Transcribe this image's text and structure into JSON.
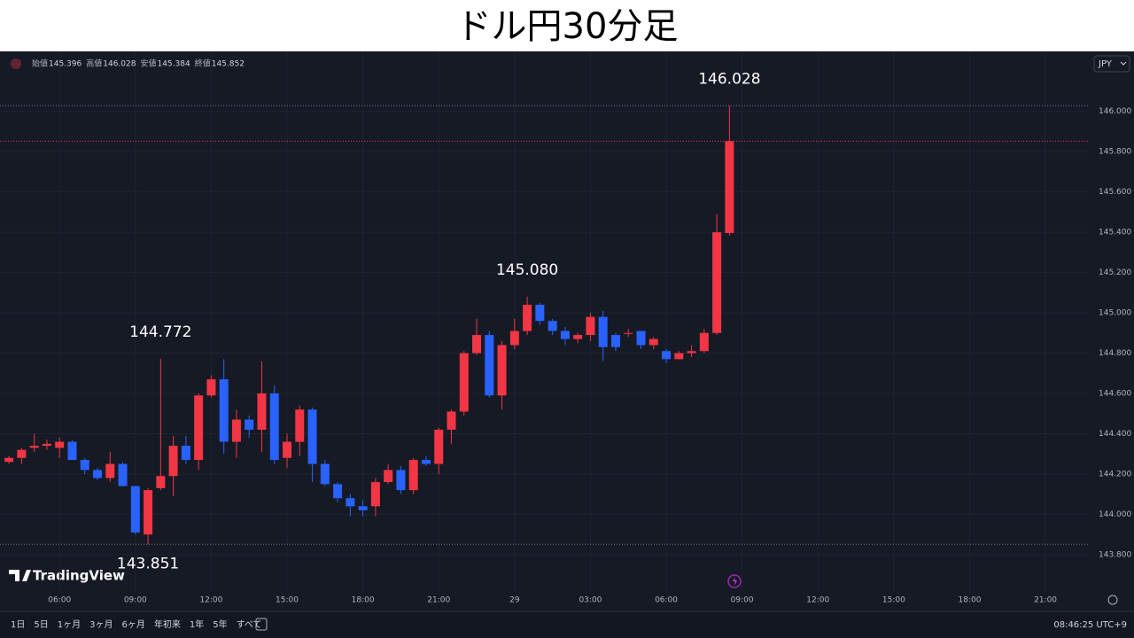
{
  "chart_data": {
    "type": "candlestick",
    "title": "ドル円30分足",
    "ohlc_labels": [
      "始値",
      "高値",
      "安値",
      "終値"
    ],
    "currency": "JPY",
    "brand": "TradingView",
    "up_color": "#f23645",
    "down_color": "#2962ff",
    "grid": true,
    "categories": [
      null,
      null,
      null,
      null,
      "06:00",
      null,
      null,
      null,
      null,
      null,
      "09:00",
      null,
      null,
      null,
      null,
      null,
      "12:00",
      null,
      null,
      null,
      null,
      null,
      "15:00",
      null,
      null,
      null,
      null,
      null,
      "18:00",
      null,
      null,
      null,
      null,
      null,
      "21:00",
      null,
      null,
      null,
      null,
      null,
      "29",
      null,
      null,
      null,
      null,
      null,
      "03:00",
      null,
      null,
      null,
      null,
      null,
      "06:00",
      null,
      null,
      null,
      null,
      null,
      "09:00",
      null,
      null,
      null,
      null,
      null,
      "12:00",
      null,
      null,
      null,
      null,
      null,
      "15:00",
      null,
      null,
      null,
      null,
      null,
      "18:00",
      null,
      null,
      null,
      null,
      null,
      "21:00",
      null,
      null,
      null
    ],
    "open": [
      144.26,
      144.28,
      144.33,
      144.34,
      144.33,
      144.36,
      144.27,
      144.22,
      144.18,
      144.25,
      144.14,
      143.9,
      144.13,
      144.19,
      144.34,
      144.27,
      144.59,
      144.67,
      144.36,
      144.47,
      144.42,
      144.6,
      144.28,
      144.36,
      144.52,
      144.25,
      144.15,
      144.08,
      144.04,
      144.04,
      144.16,
      144.22,
      144.12,
      144.27,
      144.25,
      144.42,
      144.51,
      144.8,
      144.89,
      144.59,
      144.84,
      144.91,
      145.04,
      144.96,
      144.91,
      144.87,
      144.89,
      144.98,
      144.89,
      144.9,
      144.91,
      144.84,
      144.81,
      144.77,
      144.8,
      144.81,
      144.9,
      145.396,
      null,
      null,
      null,
      null,
      null,
      null,
      null,
      null,
      null,
      null,
      null,
      null,
      null,
      null,
      null,
      null,
      null,
      null,
      null,
      null,
      null,
      null,
      null,
      null,
      null,
      null,
      null,
      null
    ],
    "high": [
      144.29,
      144.33,
      144.4,
      144.37,
      144.38,
      144.37,
      144.28,
      144.23,
      144.31,
      144.26,
      144.14,
      144.13,
      144.772,
      144.39,
      144.39,
      144.6,
      144.69,
      144.77,
      144.52,
      144.49,
      144.76,
      144.64,
      144.4,
      144.54,
      144.53,
      144.27,
      144.16,
      144.1,
      144.07,
      144.18,
      144.25,
      144.24,
      144.28,
      144.29,
      144.43,
      144.52,
      144.81,
      144.97,
      144.91,
      144.86,
      144.97,
      145.08,
      145.05,
      144.97,
      144.93,
      144.9,
      145.0,
      145.01,
      144.9,
      144.92,
      144.91,
      144.88,
      144.82,
      144.81,
      144.84,
      144.92,
      145.49,
      146.028,
      null,
      null,
      null,
      null,
      null,
      null,
      null,
      null,
      null,
      null,
      null,
      null,
      null,
      null,
      null,
      null,
      null,
      null,
      null,
      null,
      null,
      null,
      null,
      null,
      null,
      null,
      null,
      null
    ],
    "low": [
      144.25,
      144.25,
      144.31,
      144.32,
      144.28,
      144.27,
      144.2,
      144.17,
      144.16,
      144.14,
      143.9,
      143.851,
      144.12,
      144.09,
      144.25,
      144.22,
      144.58,
      144.3,
      144.28,
      144.38,
      144.31,
      144.25,
      144.23,
      144.29,
      144.16,
      144.14,
      144.06,
      143.99,
      143.99,
      143.99,
      144.15,
      144.1,
      144.1,
      144.24,
      144.2,
      144.35,
      144.49,
      144.79,
      144.58,
      144.52,
      144.82,
      144.89,
      144.94,
      144.89,
      144.84,
      144.85,
      144.86,
      144.76,
      144.81,
      144.88,
      144.82,
      144.82,
      144.75,
      144.77,
      144.78,
      144.8,
      144.89,
      145.384,
      null,
      null,
      null,
      null,
      null,
      null,
      null,
      null,
      null,
      null,
      null,
      null,
      null,
      null,
      null,
      null,
      null,
      null,
      null,
      null,
      null,
      null,
      null,
      null,
      null,
      null,
      null,
      null
    ],
    "close": [
      144.28,
      144.32,
      144.34,
      144.35,
      144.36,
      144.27,
      144.22,
      144.18,
      144.25,
      144.14,
      143.91,
      144.12,
      144.19,
      144.34,
      144.27,
      144.59,
      144.67,
      144.36,
      144.47,
      144.42,
      144.6,
      144.27,
      144.36,
      144.52,
      144.25,
      144.15,
      144.08,
      144.04,
      144.02,
      144.16,
      144.22,
      144.12,
      144.27,
      144.25,
      144.42,
      144.51,
      144.8,
      144.89,
      144.59,
      144.84,
      144.91,
      145.04,
      144.96,
      144.91,
      144.87,
      144.89,
      144.98,
      144.83,
      144.83,
      144.9,
      144.84,
      144.87,
      144.77,
      144.8,
      144.81,
      144.9,
      145.4,
      145.852,
      null,
      null,
      null,
      null,
      null,
      null,
      null,
      null,
      null,
      null,
      null,
      null,
      null,
      null,
      null,
      null,
      null,
      null,
      null,
      null,
      null,
      null,
      null,
      null,
      null,
      null,
      null,
      null
    ],
    "annotations": [
      146.028,
      {
        "value": 145.08,
        "label": "145.080"
      },
      144.772,
      143.851
    ],
    "ylim": [
      143.65,
      146.28
    ],
    "yticks": [
      {
        "value": 146,
        "label": "146.000"
      },
      {
        "value": 145.8,
        "label": "145.800"
      },
      {
        "value": 145.6,
        "label": "145.600"
      },
      {
        "value": 145.4,
        "label": "145.400"
      },
      {
        "value": 145.2,
        "label": "145.200"
      },
      {
        "value": 145,
        "label": "145.000"
      },
      {
        "value": 144.8,
        "label": "144.800"
      },
      {
        "value": 144.6,
        "label": "144.600"
      },
      {
        "value": 144.4,
        "label": "144.400"
      },
      {
        "value": 144.2,
        "label": "144.200"
      },
      {
        "value": 144,
        "label": "144.000"
      },
      {
        "value": 143.8,
        "label": "143.800"
      }
    ]
  },
  "toolbar": {
    "ranges": [
      "1日",
      "5日",
      "1ヶ月",
      "3ヶ月",
      "6ヶ月",
      "年初来",
      "1年",
      "5年",
      "すべて"
    ],
    "clock": "08:46:25 UTC+9"
  }
}
